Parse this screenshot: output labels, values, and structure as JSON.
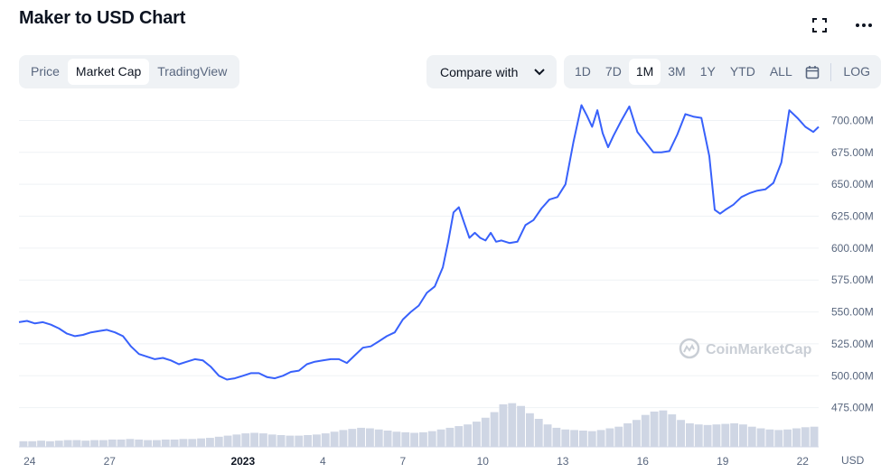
{
  "header": {
    "title": "Maker to USD Chart"
  },
  "toolbar": {
    "view_tabs": [
      "Price",
      "Market Cap",
      "TradingView"
    ],
    "active_view": "Market Cap",
    "compare_label": "Compare with",
    "ranges": [
      "1D",
      "7D",
      "1M",
      "3M",
      "1Y",
      "YTD",
      "ALL"
    ],
    "active_range": "1M",
    "log_label": "LOG"
  },
  "watermark": "CoinMarketCap",
  "colors": {
    "line": "#3861fb",
    "volume": "#cfd6e4",
    "grid": "#eff2f5"
  },
  "chart_data": {
    "type": "line",
    "title": "Maker to USD Chart",
    "ylim": [
      462,
      718
    ],
    "y_ticks": [
      "700.00M",
      "675.00M",
      "650.00M",
      "625.00M",
      "600.00M",
      "575.00M",
      "550.00M",
      "525.00M",
      "500.00M",
      "475.00M"
    ],
    "y_tick_values": [
      700,
      675,
      650,
      625,
      600,
      575,
      550,
      525,
      500,
      475
    ],
    "x_tick_labels": [
      "24",
      "27",
      "2023",
      "4",
      "7",
      "10",
      "13",
      "16",
      "19",
      "22"
    ],
    "x_tick_positions": [
      0.4,
      3.4,
      8.4,
      11.4,
      14.4,
      17.4,
      20.4,
      23.4,
      26.4,
      29.4
    ],
    "xlim": [
      0,
      30
    ],
    "unit_label": "USD",
    "grid": true,
    "series": [
      {
        "x": [
          0,
          0.3,
          0.6,
          0.9,
          1.2,
          1.5,
          1.8,
          2.1,
          2.4,
          2.7,
          3.0,
          3.3,
          3.6,
          3.9,
          4.2,
          4.5,
          4.8,
          5.1,
          5.4,
          5.7,
          6.0,
          6.3,
          6.6,
          6.9,
          7.2,
          7.5,
          7.8,
          8.1,
          8.4,
          8.7,
          9.0,
          9.3,
          9.6,
          9.9,
          10.2,
          10.5,
          10.8,
          11.1,
          11.4,
          11.7,
          12.0,
          12.3,
          12.6,
          12.9,
          13.2,
          13.5,
          13.8,
          14.1,
          14.4,
          14.7,
          15.0,
          15.3,
          15.6,
          15.9,
          16.1,
          16.3,
          16.5,
          16.7,
          16.9,
          17.1,
          17.3,
          17.5,
          17.7,
          17.9,
          18.1,
          18.4,
          18.7,
          19.0,
          19.3,
          19.6,
          19.9,
          20.2,
          20.5,
          20.8,
          21.1,
          21.3,
          21.5,
          21.7,
          21.9,
          22.1,
          22.3,
          22.6,
          22.9,
          23.2,
          23.5,
          23.8,
          24.1,
          24.4,
          24.7,
          25.0,
          25.3,
          25.6,
          25.9,
          26.1,
          26.3,
          26.5,
          26.8,
          27.1,
          27.4,
          27.7,
          28.0,
          28.3,
          28.6,
          28.9,
          29.2,
          29.5,
          29.8,
          30.0
        ],
        "y": [
          542,
          543,
          541,
          542,
          540,
          537,
          533,
          531,
          532,
          534,
          535,
          536,
          534,
          531,
          523,
          517,
          515,
          513,
          514,
          512,
          509,
          511,
          513,
          512,
          507,
          500,
          497,
          498,
          500,
          502,
          502,
          499,
          498,
          500,
          503,
          504,
          509,
          511,
          512,
          513,
          513,
          510,
          516,
          522,
          523,
          527,
          531,
          534,
          544,
          550,
          555,
          565,
          570,
          585,
          605,
          628,
          632,
          620,
          608,
          612,
          608,
          606,
          612,
          605,
          606,
          604,
          605,
          618,
          622,
          631,
          638,
          640,
          650,
          683,
          712,
          704,
          695,
          708,
          690,
          679,
          688,
          700,
          711,
          691,
          683,
          675,
          675,
          676,
          689,
          705,
          703,
          702,
          672,
          630,
          627,
          630,
          634,
          640,
          643,
          645,
          646,
          651,
          667,
          708,
          702,
          695,
          691,
          695
        ]
      }
    ],
    "volume": [
      0.1,
      0.1,
      0.11,
      0.1,
      0.11,
      0.12,
      0.12,
      0.11,
      0.12,
      0.12,
      0.13,
      0.13,
      0.14,
      0.13,
      0.12,
      0.12,
      0.13,
      0.13,
      0.14,
      0.14,
      0.15,
      0.16,
      0.18,
      0.2,
      0.22,
      0.24,
      0.25,
      0.24,
      0.22,
      0.21,
      0.2,
      0.2,
      0.21,
      0.22,
      0.24,
      0.27,
      0.3,
      0.32,
      0.34,
      0.33,
      0.31,
      0.29,
      0.27,
      0.26,
      0.25,
      0.26,
      0.28,
      0.31,
      0.34,
      0.37,
      0.4,
      0.45,
      0.52,
      0.62,
      0.76,
      0.78,
      0.73,
      0.6,
      0.5,
      0.4,
      0.34,
      0.31,
      0.3,
      0.29,
      0.28,
      0.3,
      0.33,
      0.36,
      0.42,
      0.48,
      0.57,
      0.63,
      0.65,
      0.58,
      0.48,
      0.42,
      0.4,
      0.39,
      0.4,
      0.41,
      0.42,
      0.4,
      0.36,
      0.33,
      0.31,
      0.3,
      0.31,
      0.33,
      0.35,
      0.36
    ]
  }
}
